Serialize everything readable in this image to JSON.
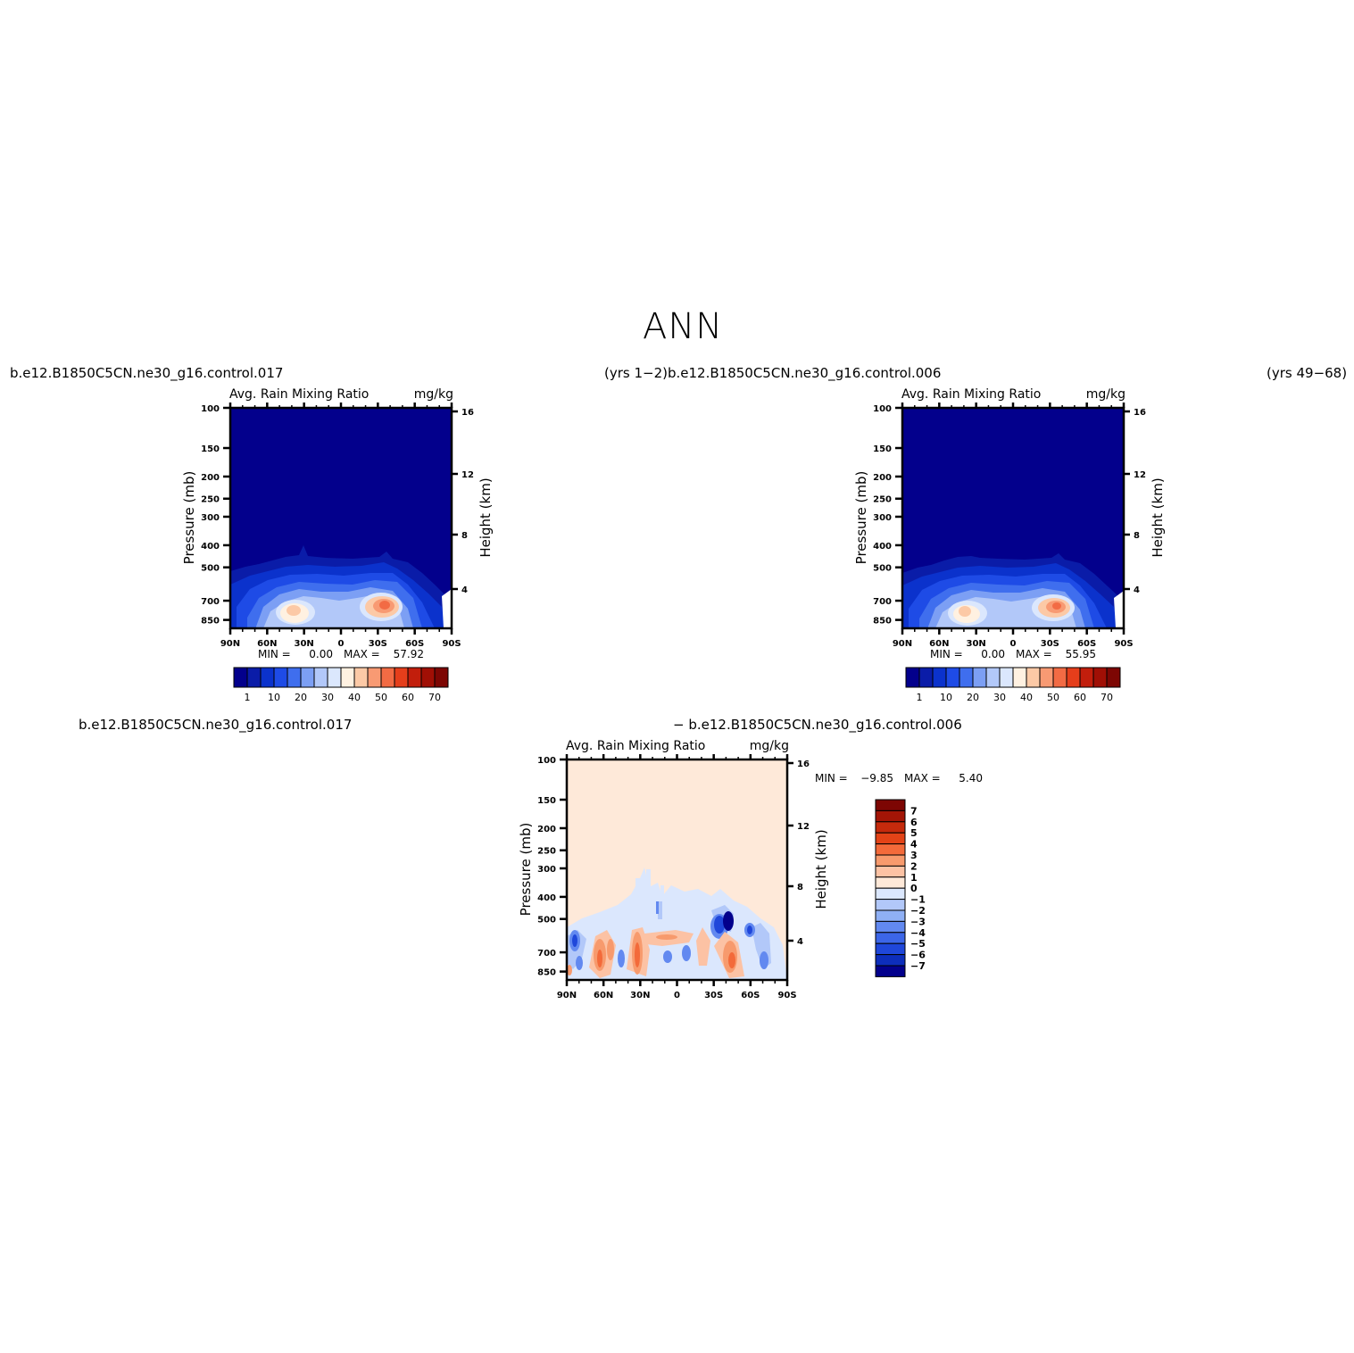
{
  "page": {
    "title": "ANN",
    "top_left_label": "b.e12.B1850C5CN.ne30_g16.control.017",
    "top_right_label": "(yrs 1−2)b.e12.B1850C5CN.ne30_g16.control.006",
    "top_far_right_label": "(yrs 49−68)",
    "bottom_left_label": "b.e12.B1850C5CN.ne30_g16.control.017",
    "bottom_right_label": "− b.e12.B1850C5CN.ne30_g16.control.006"
  },
  "colors": {
    "abs_levels": [
      "#03008c",
      "#0a1ca8",
      "#0b32cc",
      "#1e4be6",
      "#3f6eee",
      "#7c9ff4",
      "#b2c8f9",
      "#dbe7fd",
      "#fff1e1",
      "#fcc9a6",
      "#f89a73",
      "#f26b44",
      "#e53e1b",
      "#c21e0c",
      "#a00f05",
      "#7d0603"
    ],
    "diff_levels": [
      "#7d0603",
      "#a31506",
      "#c52a0c",
      "#e34317",
      "#f36a3a",
      "#f79a6d",
      "#fcc2a4",
      "#fee9d9",
      "#dbe7fd",
      "#b2c8f9",
      "#8fb0f5",
      "#6289f0",
      "#3c66e8",
      "#1f47da",
      "#0d2ebc",
      "#03008c"
    ]
  },
  "chart_data": [
    {
      "type": "heatmap",
      "panel": "control.017",
      "title": "Avg. Rain Mixing Ratio",
      "units": "mg/kg",
      "xlabel": "",
      "ylabel": "Pressure (mb)",
      "ylabel_right": "Height (km)",
      "x_ticks": [
        "90N",
        "60N",
        "30N",
        "0",
        "30S",
        "60S",
        "90S"
      ],
      "y_ticks": [
        "100",
        "150",
        "200",
        "250",
        "300",
        "400",
        "500",
        "700",
        "850"
      ],
      "y_right_ticks": [
        "16",
        "12",
        "8",
        "4"
      ],
      "colorbar_ticks": [
        "1",
        "10",
        "20",
        "30",
        "40",
        "50",
        "60",
        "70"
      ],
      "min_label": "MIN =",
      "min_value": "0.00",
      "max_label": "MAX =",
      "max_value": "57.92",
      "blobs": [
        {
          "lat": 36,
          "p": 760,
          "value": 40
        },
        {
          "lat": -37,
          "p": 730,
          "value": 57.92
        }
      ]
    },
    {
      "type": "heatmap",
      "panel": "control.006",
      "title": "Avg. Rain Mixing Ratio",
      "units": "mg/kg",
      "xlabel": "",
      "ylabel": "Pressure (mb)",
      "ylabel_right": "Height (km)",
      "x_ticks": [
        "90N",
        "60N",
        "30N",
        "0",
        "30S",
        "60S",
        "90S"
      ],
      "y_ticks": [
        "100",
        "150",
        "200",
        "250",
        "300",
        "400",
        "500",
        "700",
        "850"
      ],
      "y_right_ticks": [
        "16",
        "12",
        "8",
        "4"
      ],
      "colorbar_ticks": [
        "1",
        "10",
        "20",
        "30",
        "40",
        "50",
        "60",
        "70"
      ],
      "min_label": "MIN =",
      "min_value": "0.00",
      "max_label": "MAX =",
      "max_value": "55.95",
      "blobs": [
        {
          "lat": 36,
          "p": 760,
          "value": 38
        },
        {
          "lat": -37,
          "p": 730,
          "value": 55.95
        }
      ]
    },
    {
      "type": "heatmap",
      "panel": "difference",
      "title": "Avg. Rain Mixing Ratio",
      "units": "mg/kg",
      "xlabel": "",
      "ylabel": "Pressure (mb)",
      "ylabel_right": "Height (km)",
      "x_ticks": [
        "90N",
        "60N",
        "30N",
        "0",
        "30S",
        "60S",
        "90S"
      ],
      "y_ticks": [
        "100",
        "150",
        "200",
        "250",
        "300",
        "400",
        "500",
        "700",
        "850"
      ],
      "y_right_ticks": [
        "16",
        "12",
        "8",
        "4"
      ],
      "colorbar_ticks": [
        "7",
        "6",
        "5",
        "4",
        "3",
        "2",
        "1",
        "0",
        "−1",
        "−2",
        "−3",
        "−4",
        "−5",
        "−6",
        "−7"
      ],
      "min_label": "MIN =",
      "min_value": "−9.85",
      "max_label": "MAX =",
      "max_value": "5.40"
    }
  ]
}
